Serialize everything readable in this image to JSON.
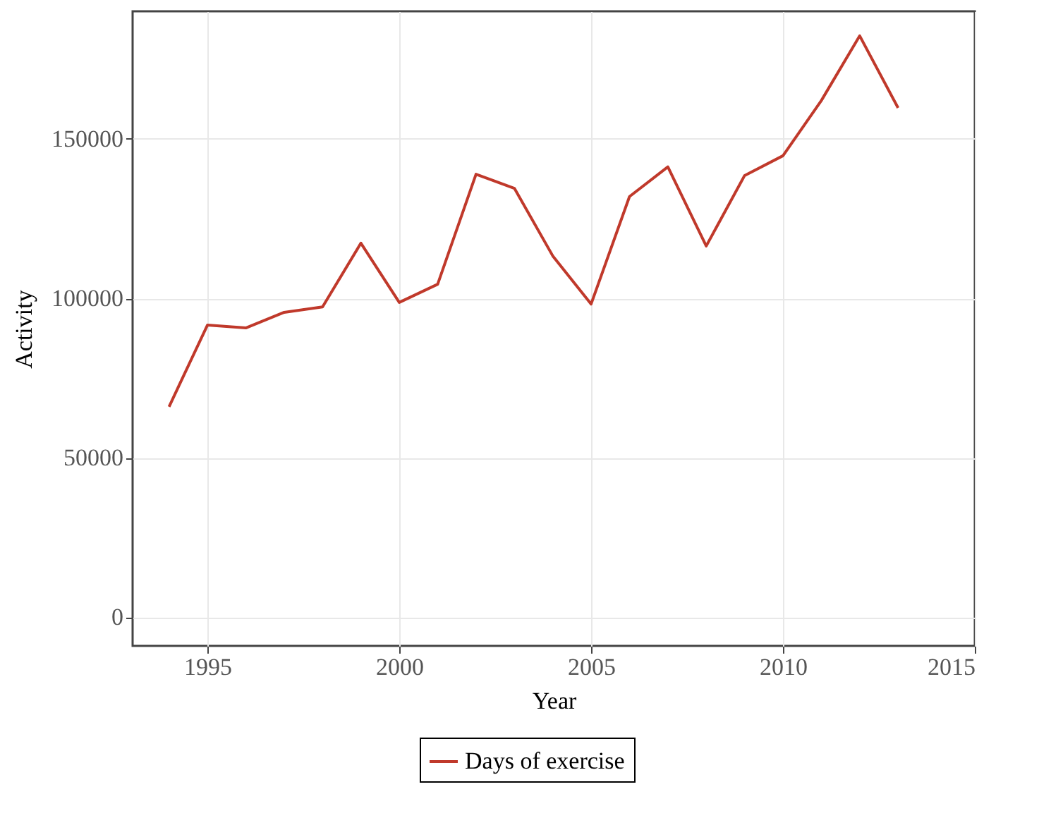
{
  "chart_data": {
    "type": "line",
    "xlabel": "Year",
    "ylabel": "Activity",
    "x": [
      1994,
      1995,
      1996,
      1997,
      1998,
      1999,
      2000,
      2001,
      2002,
      2003,
      2004,
      2005,
      2006,
      2007,
      2008,
      2009,
      2010,
      2011,
      2012,
      2013
    ],
    "series": [
      {
        "name": "Days of exercise",
        "color": "#c0392b",
        "values": [
          66000,
          91600,
          90700,
          95600,
          97300,
          117300,
          98700,
          104400,
          138900,
          134500,
          113300,
          98200,
          131900,
          141200,
          116400,
          138500,
          144700,
          162000,
          182300,
          159700
        ]
      }
    ],
    "xlim": [
      1993.05,
      2015
    ],
    "xticks": [
      1995,
      2000,
      2005,
      2010,
      2015
    ],
    "ylim": [
      -9000,
      190000
    ],
    "yticks": [
      0,
      50000,
      100000,
      150000
    ],
    "grid": true,
    "legend": "bottom",
    "line_style": "solid",
    "marker": "none"
  }
}
